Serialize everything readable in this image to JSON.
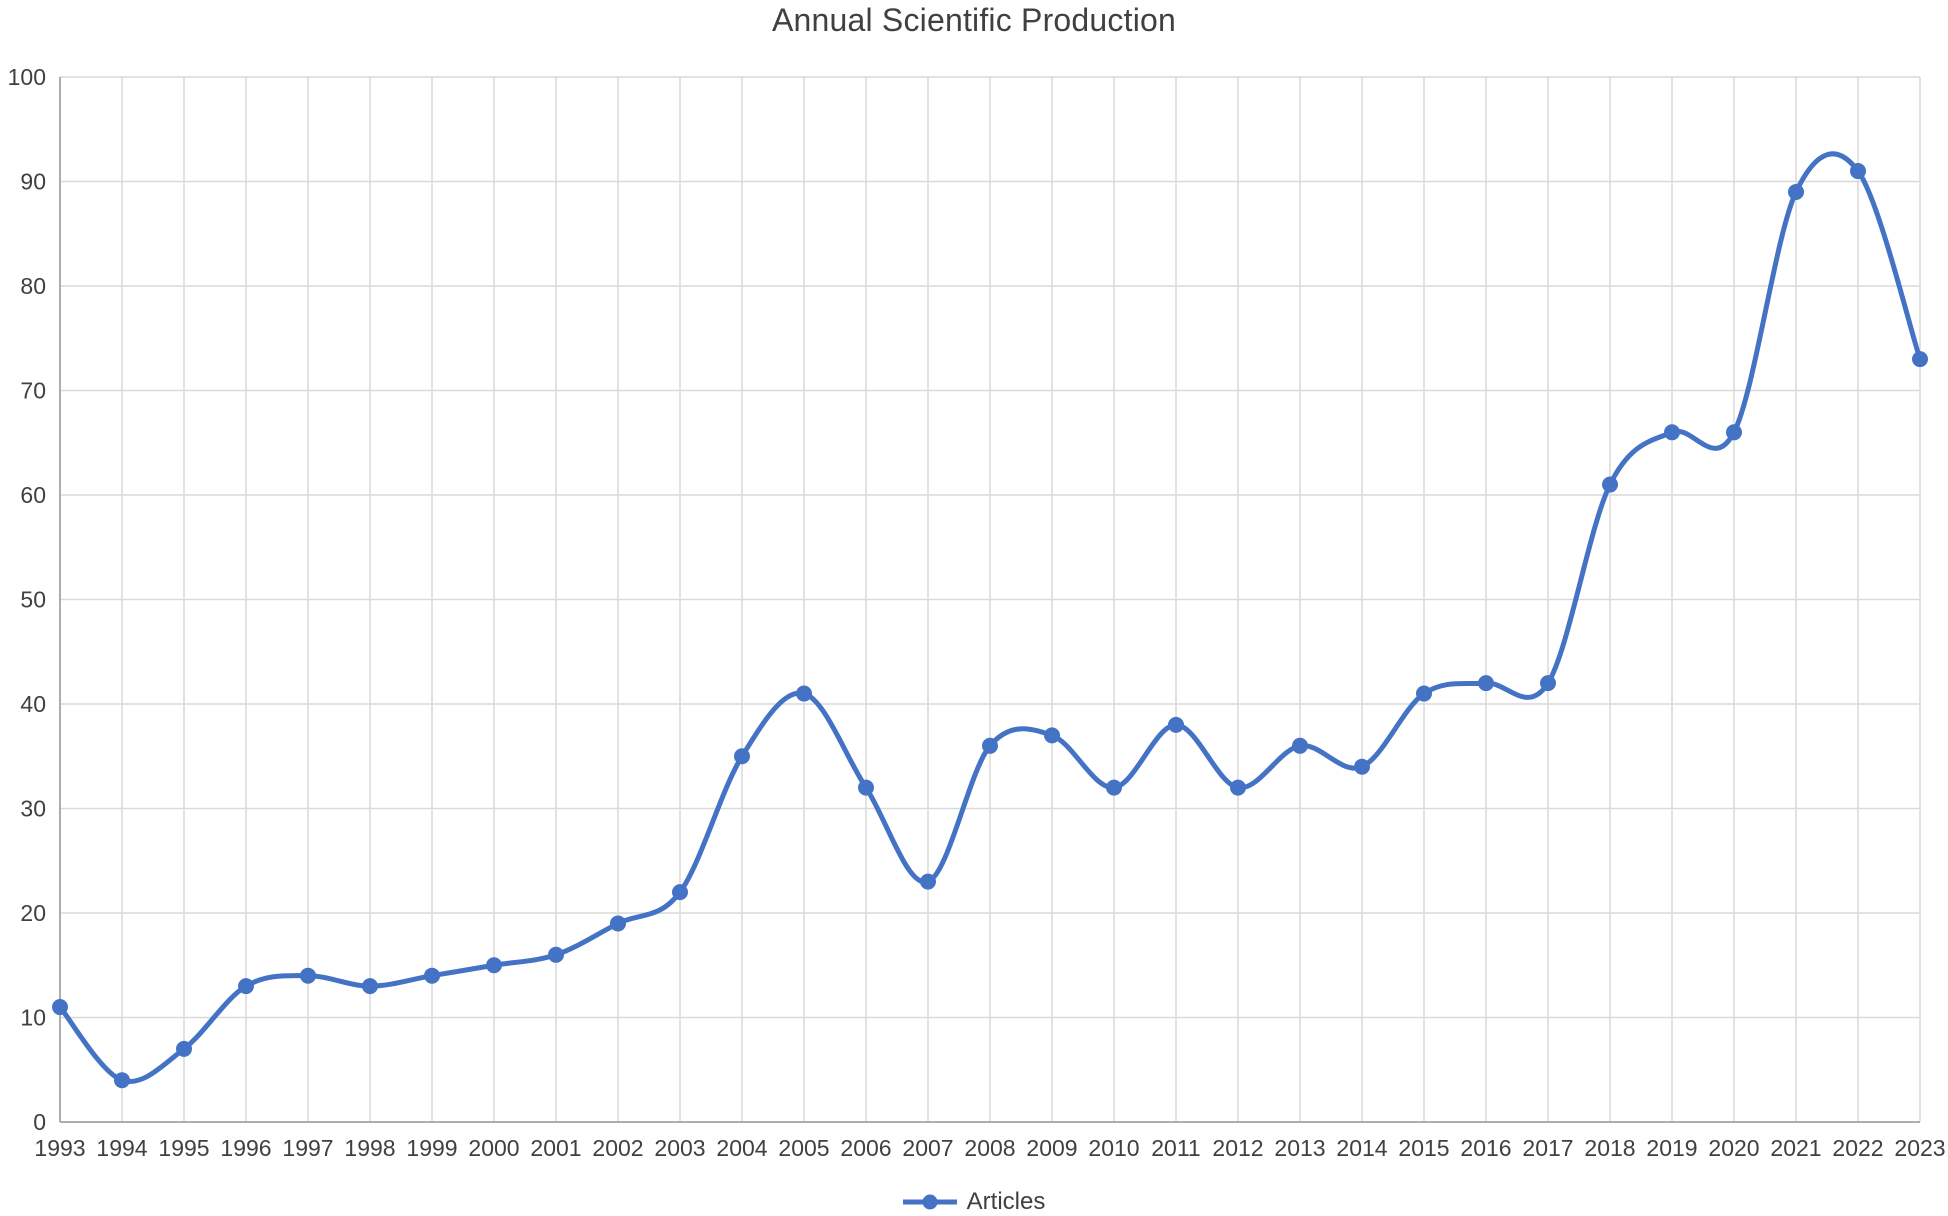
{
  "chart_data": {
    "type": "line",
    "title": "Annual Scientific Production",
    "categories": [
      "1993",
      "1994",
      "1995",
      "1996",
      "1997",
      "1998",
      "1999",
      "2000",
      "2001",
      "2002",
      "2003",
      "2004",
      "2005",
      "2006",
      "2007",
      "2008",
      "2009",
      "2010",
      "2011",
      "2012",
      "2013",
      "2014",
      "2015",
      "2016",
      "2017",
      "2018",
      "2019",
      "2020",
      "2021",
      "2022",
      "2023"
    ],
    "series": [
      {
        "name": "Articles",
        "values": [
          11,
          4,
          7,
          13,
          14,
          13,
          14,
          15,
          16,
          19,
          22,
          35,
          41,
          32,
          23,
          36,
          37,
          32,
          38,
          32,
          36,
          34,
          41,
          42,
          42,
          61,
          66,
          66,
          89,
          91,
          73
        ]
      }
    ],
    "xlabel": "",
    "ylabel": "",
    "ylim": [
      0,
      100
    ],
    "yticks": [
      0,
      10,
      20,
      30,
      40,
      50,
      60,
      70,
      80,
      90,
      100
    ],
    "grid": "both",
    "line_smoothing": true,
    "marker": "circle",
    "legend_position": "bottom"
  },
  "colors": {
    "line": "#4472C4",
    "marker": "#4472C4",
    "gridline": "#D9D9D9",
    "axis_line": "#ADADAD",
    "title_text": "#404040",
    "tick_text": "#404040",
    "background": "#FFFFFF"
  },
  "icons": {
    "legend_marker": "line-with-dot-icon"
  }
}
